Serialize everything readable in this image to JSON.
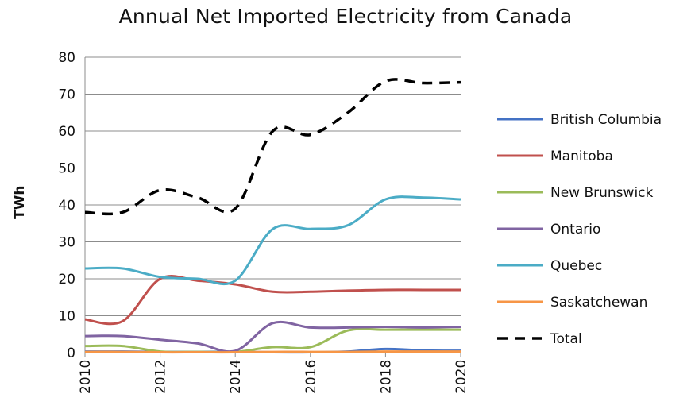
{
  "chart_data": {
    "type": "line",
    "title": "Annual Net Imported Electricity from Canada",
    "xlabel": "",
    "ylabel": "TWh",
    "x": [
      2010,
      2011,
      2012,
      2013,
      2014,
      2015,
      2016,
      2017,
      2018,
      2019,
      2020
    ],
    "xticks": [
      "2010",
      "2012",
      "2014",
      "2016",
      "2018",
      "2020"
    ],
    "ylim": [
      0,
      80
    ],
    "yticks": [
      "0",
      "10",
      "20",
      "30",
      "40",
      "50",
      "60",
      "70",
      "80"
    ],
    "grid": true,
    "legend_position": "right",
    "series": [
      {
        "name": "British Columbia",
        "color": "#4472c4",
        "dash": false,
        "values": [
          0.3,
          0.3,
          0.2,
          0.2,
          0.2,
          0.1,
          0.1,
          0.3,
          1.0,
          0.6,
          0.5
        ]
      },
      {
        "name": "Manitoba",
        "color": "#c0504d",
        "dash": false,
        "values": [
          9,
          8.5,
          20,
          19.5,
          18.5,
          16.5,
          16.5,
          16.8,
          17,
          17,
          17
        ]
      },
      {
        "name": "New Brunswick",
        "color": "#9bbb59",
        "dash": false,
        "values": [
          1.8,
          1.8,
          0.3,
          0.2,
          0.2,
          1.5,
          1.5,
          6,
          6.2,
          6.2,
          6.2
        ]
      },
      {
        "name": "Ontario",
        "color": "#8064a2",
        "dash": false,
        "values": [
          4.5,
          4.5,
          3.5,
          2.5,
          0.5,
          8,
          6.8,
          6.8,
          7,
          6.8,
          7
        ]
      },
      {
        "name": "Quebec",
        "color": "#4bacc6",
        "dash": false,
        "values": [
          22.8,
          22.8,
          20.5,
          20,
          19.5,
          33.5,
          33.5,
          34.5,
          41.5,
          42,
          41.5
        ]
      },
      {
        "name": "Saskatchewan",
        "color": "#f79646",
        "dash": false,
        "values": [
          0.2,
          0.2,
          0.1,
          0.1,
          0.1,
          0.2,
          0.2,
          0.2,
          0.3,
          0.3,
          0.3
        ]
      },
      {
        "name": "Total",
        "color": "#000000",
        "dash": true,
        "values": [
          38,
          38,
          44,
          42,
          39,
          60,
          59,
          65,
          73.5,
          73,
          73.2
        ]
      }
    ]
  }
}
